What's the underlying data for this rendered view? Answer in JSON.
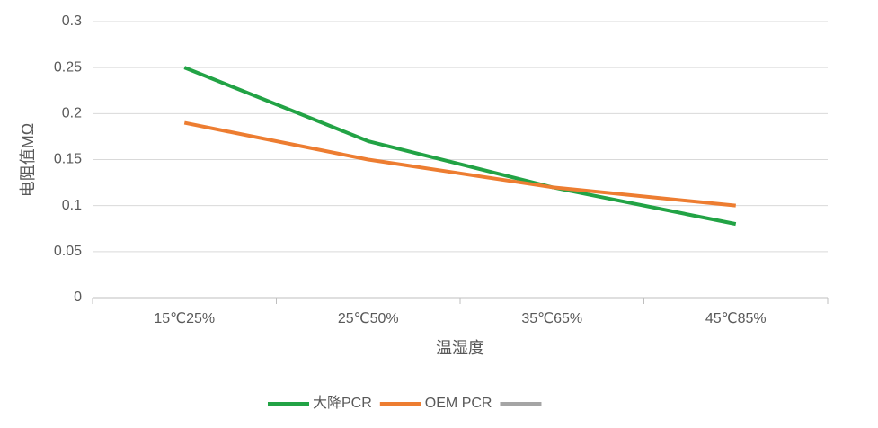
{
  "chart_data": {
    "type": "line",
    "x_label": "温湿度",
    "y_label": "电阻值MΩ",
    "categories": [
      "15℃25%",
      "25℃50%",
      "35℃65%",
      "45℃85%"
    ],
    "series": [
      {
        "name": "大降PCR",
        "color": "#22a345",
        "values": [
          0.25,
          0.17,
          0.12,
          0.08
        ]
      },
      {
        "name": "OEM PCR",
        "color": "#ed7d31",
        "values": [
          0.19,
          0.15,
          0.12,
          0.1
        ]
      }
    ],
    "ylim": [
      0,
      0.3
    ],
    "yticks": [
      0,
      0.05,
      0.1,
      0.15,
      0.2,
      0.25,
      0.3
    ],
    "grid": true,
    "legend": "bottom"
  }
}
